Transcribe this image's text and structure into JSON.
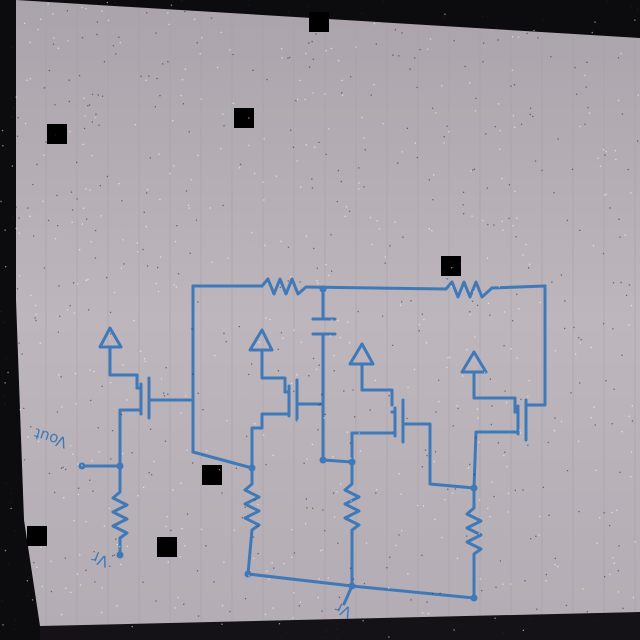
{
  "labels": {
    "vout": "Vout",
    "vr_left": "Vr",
    "vr_bottom": "Vr"
  },
  "colors": {
    "paper": "#b8b1b8",
    "ink": "#3f79b8",
    "background": "#0c0b0e",
    "occluder": "#000000"
  }
}
